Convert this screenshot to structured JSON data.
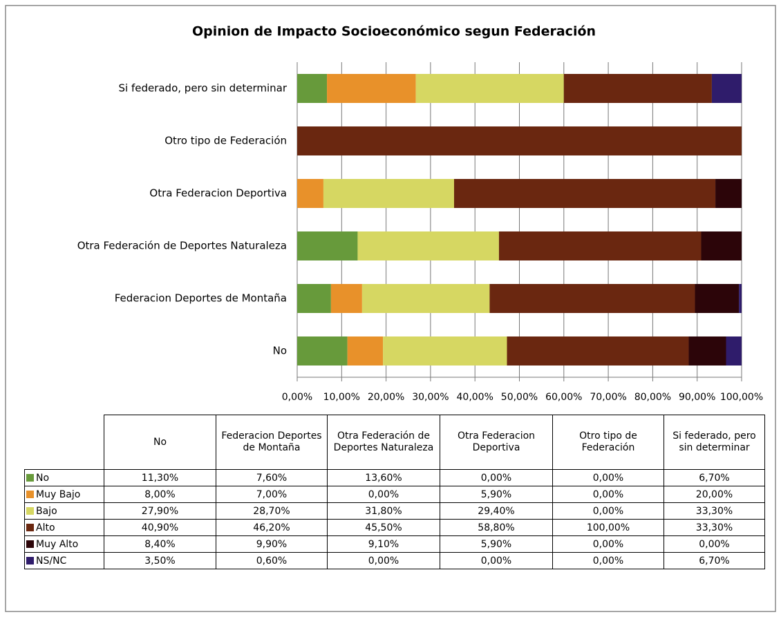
{
  "chart_data": {
    "type": "stacked_barh",
    "title": "Opinion de Impacto Socioeconómico segun Federación",
    "categories": [
      "No",
      "Federacion Deportes de Montaña",
      "Otra Federación de Deportes Naturaleza",
      "Otra Federacion Deportiva",
      "Otro tipo de Federación",
      "Si federado, pero sin determinar"
    ],
    "series": [
      {
        "name": "No",
        "color": "#679a3b",
        "values": [
          11.3,
          7.6,
          13.6,
          0,
          0,
          6.7
        ],
        "value_labels": [
          "11,30%",
          "7,60%",
          "13,60%",
          "0,00%",
          "0,00%",
          "6,70%"
        ]
      },
      {
        "name": "Muy Bajo",
        "color": "#e8912a",
        "values": [
          8.0,
          7.0,
          0,
          5.9,
          0,
          20.0
        ],
        "value_labels": [
          "8,00%",
          "7,00%",
          "0,00%",
          "5,90%",
          "0,00%",
          "20,00%"
        ]
      },
      {
        "name": "Bajo",
        "color": "#d6d762",
        "values": [
          27.9,
          28.7,
          31.8,
          29.4,
          0,
          33.3
        ],
        "value_labels": [
          "27,90%",
          "28,70%",
          "31,80%",
          "29,40%",
          "0,00%",
          "33,30%"
        ]
      },
      {
        "name": "Alto",
        "color": "#6a2710",
        "values": [
          40.9,
          46.2,
          45.5,
          58.8,
          100,
          33.3
        ],
        "value_labels": [
          "40,90%",
          "46,20%",
          "45,50%",
          "58,80%",
          "100,00%",
          "33,30%"
        ]
      },
      {
        "name": "Muy Alto",
        "color": "#2c0509",
        "values": [
          8.4,
          9.9,
          9.1,
          5.9,
          0,
          0
        ],
        "value_labels": [
          "8,40%",
          "9,90%",
          "9,10%",
          "5,90%",
          "0,00%",
          "0,00%"
        ]
      },
      {
        "name": "NS/NC",
        "color": "#2f1c6b",
        "values": [
          3.5,
          0.6,
          0,
          0,
          0,
          6.7
        ],
        "value_labels": [
          "3,50%",
          "0,60%",
          "0,00%",
          "0,00%",
          "0,00%",
          "6,70%"
        ]
      }
    ],
    "xlim": [
      0,
      100
    ],
    "xticks": [
      {
        "value": 0,
        "label": "0,00%"
      },
      {
        "value": 10,
        "label": "10,00%"
      },
      {
        "value": 20,
        "label": "20,00%"
      },
      {
        "value": 30,
        "label": "30,00%"
      },
      {
        "value": 40,
        "label": "40,00%"
      },
      {
        "value": 50,
        "label": "50,00%"
      },
      {
        "value": 60,
        "label": "60,00%"
      },
      {
        "value": 70,
        "label": "70,00%"
      },
      {
        "value": 80,
        "label": "80,00%"
      },
      {
        "value": 90,
        "label": "90,00%"
      },
      {
        "value": 100,
        "label": "100,00%"
      }
    ],
    "grid": true
  }
}
